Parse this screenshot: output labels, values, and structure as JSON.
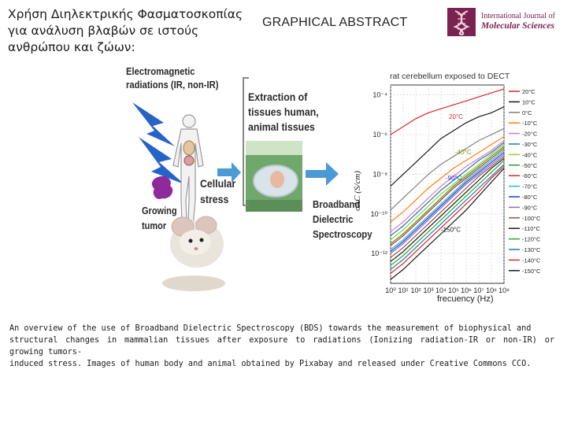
{
  "title": {
    "greek_lines": [
      "Χρήση Διηλεκτρικής Φασματοσκοπίας",
      "για ανάλυση βλαβών σε ιστούς",
      "ανθρώπου και ζώων:"
    ],
    "graphical_abstract": "GRAPHICAL ABSTRACT"
  },
  "journal": {
    "line1": "International Journal of",
    "line2": "Molecular Sciences",
    "brand_color": "#7a2350"
  },
  "figure": {
    "electromagnetic": [
      "Electromagnetic",
      "radiations (IR, non-IR)"
    ],
    "extraction": [
      "Extraction of",
      "tissues human,",
      "animal tissues"
    ],
    "cellular_stress": [
      "Cellular",
      "stress"
    ],
    "growing_tumor": [
      "Growing",
      "tumor"
    ],
    "bds": [
      "Broadband",
      "Dielectric",
      "Spectroscopy"
    ]
  },
  "chart_data": {
    "type": "line",
    "title": "rat cerebellum exposed to DECT",
    "xlabel": "frecuency (Hz)",
    "ylabel": "σAC (S/cm)",
    "x_scale": "log",
    "y_scale": "log",
    "x_tick_labels": [
      "10⁰",
      "10¹",
      "10²",
      "10³",
      "10⁴",
      "10⁵",
      "10⁶",
      "10⁷",
      "10⁸",
      "10⁹"
    ],
    "y_tick_labels": [
      "10⁻⁴",
      "10⁻⁶",
      "10⁻⁸",
      "10⁻¹⁰",
      "10⁻¹²"
    ],
    "annotations": [
      "20°C",
      "-40°C",
      "-90°C",
      "-150°C"
    ],
    "legend_position": "right",
    "series": [
      {
        "name": "-150°C",
        "color": "#1a1a1a",
        "values": [
          -13.3,
          -12.8,
          -12.2,
          -11.6,
          -11.0,
          -10.4,
          -9.8,
          -9.1,
          -8.4,
          -7.7
        ]
      },
      {
        "name": "-140°C",
        "color": "#d62728",
        "values": [
          -13.0,
          -12.5,
          -11.9,
          -11.3,
          -10.7,
          -10.1,
          -9.5,
          -8.9,
          -8.2,
          -7.6
        ]
      },
      {
        "name": "-130°C",
        "color": "#1f77b4",
        "values": [
          -12.8,
          -12.3,
          -11.7,
          -11.1,
          -10.5,
          -9.9,
          -9.3,
          -8.7,
          -8.1,
          -7.5
        ]
      },
      {
        "name": "-120°C",
        "color": "#2ca02c",
        "values": [
          -12.6,
          -12.1,
          -11.5,
          -10.9,
          -10.3,
          -9.7,
          -9.1,
          -8.5,
          -7.9,
          -7.3
        ]
      },
      {
        "name": "-110°C",
        "color": "#1a1a1a",
        "values": [
          -12.4,
          -11.9,
          -11.3,
          -10.7,
          -10.1,
          -9.5,
          -8.9,
          -8.3,
          -7.7,
          -7.2
        ]
      },
      {
        "name": "-100°C",
        "color": "#8c564b",
        "values": [
          -12.2,
          -11.7,
          -11.1,
          -10.5,
          -9.9,
          -9.3,
          -8.7,
          -8.1,
          -7.6,
          -7.1
        ]
      },
      {
        "name": "-90°C",
        "color": "#9467bd",
        "values": [
          -12.0,
          -11.5,
          -10.9,
          -10.3,
          -9.7,
          -9.1,
          -8.5,
          -8.0,
          -7.5,
          -7.0
        ]
      },
      {
        "name": "-80°C",
        "color": "#1f3bd6",
        "values": [
          -11.9,
          -11.4,
          -10.8,
          -10.2,
          -9.6,
          -9.0,
          -8.4,
          -7.9,
          -7.4,
          -6.9
        ]
      },
      {
        "name": "-70°C",
        "color": "#17becf",
        "values": [
          -11.8,
          -11.3,
          -10.7,
          -10.1,
          -9.5,
          -8.9,
          -8.3,
          -7.8,
          -7.3,
          -6.8
        ]
      },
      {
        "name": "-60°C",
        "color": "#d62728",
        "values": [
          -11.6,
          -11.1,
          -10.5,
          -9.9,
          -9.3,
          -8.7,
          -8.2,
          -7.7,
          -7.2,
          -6.7
        ]
      },
      {
        "name": "-50°C",
        "color": "#2ca02c",
        "values": [
          -11.5,
          -11.0,
          -10.4,
          -9.8,
          -9.2,
          -8.6,
          -8.1,
          -7.6,
          -7.1,
          -6.6
        ]
      },
      {
        "name": "-40°C",
        "color": "#9acd32",
        "values": [
          -11.3,
          -10.8,
          -10.2,
          -9.6,
          -9.0,
          -8.5,
          -8.0,
          -7.5,
          -7.0,
          -6.5
        ]
      },
      {
        "name": "-30°C",
        "color": "#1f77b4",
        "values": [
          -11.1,
          -10.6,
          -10.0,
          -9.4,
          -8.8,
          -8.3,
          -7.8,
          -7.3,
          -6.9,
          -6.4
        ]
      },
      {
        "name": "-20°C",
        "color": "#e377c2",
        "values": [
          -10.9,
          -10.4,
          -9.8,
          -9.2,
          -8.6,
          -8.1,
          -7.6,
          -7.2,
          -6.8,
          -6.3
        ]
      },
      {
        "name": "-10°C",
        "color": "#ff7f0e",
        "values": [
          -10.4,
          -9.9,
          -9.3,
          -8.7,
          -8.2,
          -7.7,
          -7.3,
          -6.9,
          -6.5,
          -6.1
        ]
      },
      {
        "name": "0°C",
        "color": "#7f7f7f",
        "values": [
          -9.8,
          -9.2,
          -8.6,
          -8.0,
          -7.5,
          -7.1,
          -6.7,
          -6.3,
          -6.0,
          -5.7
        ]
      },
      {
        "name": "10°C",
        "color": "#1a1a1a",
        "values": [
          -8.6,
          -8.0,
          -7.4,
          -6.8,
          -6.2,
          -5.8,
          -5.4,
          -5.1,
          -4.9,
          -4.6
        ]
      },
      {
        "name": "20°C",
        "color": "#d62728",
        "values": [
          -6.0,
          -5.6,
          -5.2,
          -4.9,
          -4.7,
          -4.5,
          -4.3,
          -4.1,
          -3.9,
          -3.7
        ]
      }
    ]
  },
  "caption": [
    "An overview of the use of Broadband Dielectric Spectroscopy (BDS) towards the measurement of biophysical and",
    "structural changes in mammalian tissues after exposure to radiations (Ionizing radiation-IR or non-IR) or growing tumors-",
    "induced stress. Images of human body and animal obtained by Pixabay and released under Creative Commons CCO."
  ]
}
